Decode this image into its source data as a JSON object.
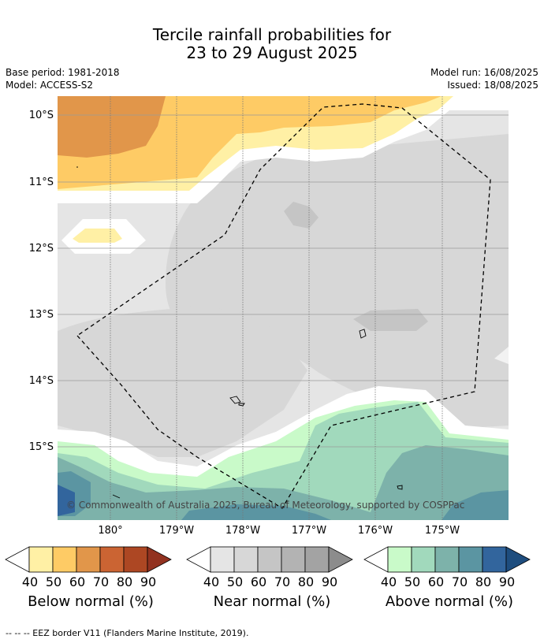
{
  "title_line1": "Tercile rainfall probabilities for",
  "title_line2": "23 to 29 August 2025",
  "base_period": "Base period: 1981-2018",
  "model": "Model: ACCESS-S2",
  "model_run": "Model run: 16/08/2025",
  "issued": "Issued: 18/08/2025",
  "lat_labels": [
    "10°S",
    "11°S",
    "12°S",
    "13°S",
    "14°S",
    "15°S"
  ],
  "lon_labels": [
    "180°",
    "179°W",
    "178°W",
    "177°W",
    "176°W",
    "175°W"
  ],
  "credit": "© Commonwealth of Australia 2025, Bureau of Meteorology, supported by COSPPac",
  "legends": [
    {
      "title": "Below normal (%)",
      "ticks": [
        "40",
        "50",
        "60",
        "70",
        "80",
        "90"
      ],
      "colors": [
        "#fff0a5",
        "#fecb65",
        "#e1964a",
        "#cb6433",
        "#ad4723",
        "#923220"
      ]
    },
    {
      "title": "Near normal (%)",
      "ticks": [
        "40",
        "50",
        "60",
        "70",
        "80",
        "90"
      ],
      "colors": [
        "#e5e5e5",
        "#d7d7d7",
        "#c5c5c5",
        "#b3b3b3",
        "#a3a3a3",
        "#8c8c8c"
      ]
    },
    {
      "title": "Above normal (%)",
      "ticks": [
        "40",
        "50",
        "60",
        "70",
        "80",
        "90"
      ],
      "colors": [
        "#c9fac9",
        "#a1d9bc",
        "#7db2aa",
        "#5b95a2",
        "#32659d",
        "#1e4d7e"
      ]
    }
  ],
  "footer": "--  --  -- EEZ border V11 (Flanders Marine Institute, 2019)."
}
